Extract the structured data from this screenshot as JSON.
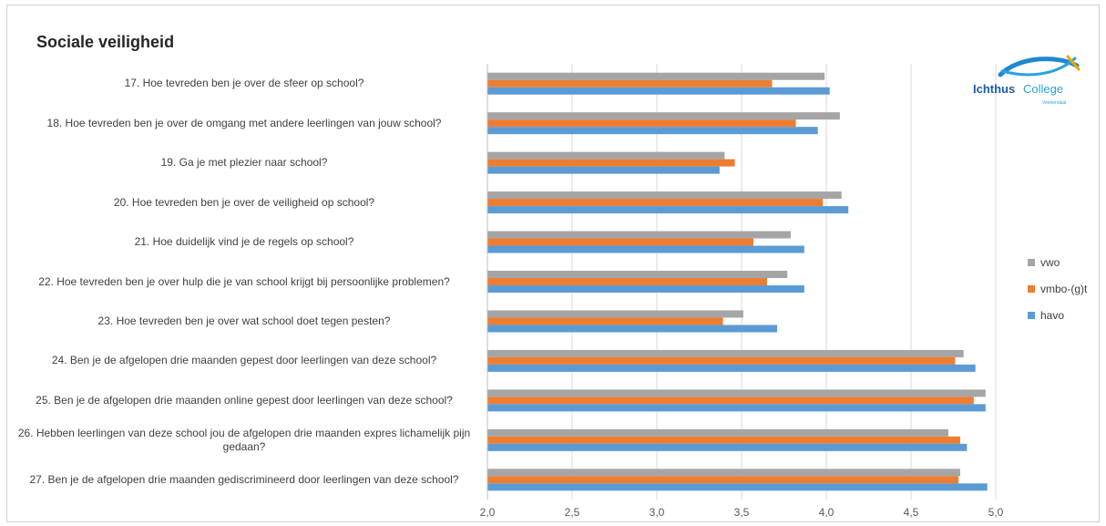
{
  "chart_data": {
    "type": "bar",
    "orientation": "horizontal",
    "title": "Sociale veiligheid",
    "categories": [
      "17. Hoe tevreden ben je over de sfeer op school?",
      "18. Hoe tevreden ben je over de omgang met andere leerlingen van jouw school?",
      "19. Ga je met plezier naar school?",
      "20. Hoe tevreden ben je over de veiligheid op school?",
      "21. Hoe duidelijk vind je de regels op school?",
      "22. Hoe tevreden ben je over hulp die je van school krijgt bij persoonlijke problemen?",
      "23. Hoe tevreden ben je over wat school doet tegen pesten?",
      "24. Ben je de afgelopen drie maanden gepest door leerlingen van deze school?",
      "25. Ben je de afgelopen drie maanden online gepest door leerlingen van deze school?",
      "26. Hebben leerlingen van deze school jou de afgelopen drie maanden expres lichamelijk pijn gedaan?",
      "27. Ben je de afgelopen drie maanden gediscrimineerd door leerlingen van deze school?"
    ],
    "series": [
      {
        "name": "vwo",
        "color": "#a5a5a5",
        "values": [
          3.99,
          4.08,
          3.4,
          4.09,
          3.79,
          3.77,
          3.51,
          4.81,
          4.94,
          4.72,
          4.79
        ]
      },
      {
        "name": "vmbo-(g)t",
        "color": "#ed7d31",
        "values": [
          3.68,
          3.82,
          3.46,
          3.98,
          3.57,
          3.65,
          3.39,
          4.76,
          4.87,
          4.79,
          4.78
        ]
      },
      {
        "name": "havo",
        "color": "#5b9bd5",
        "values": [
          4.02,
          3.95,
          3.37,
          4.13,
          3.87,
          3.87,
          3.71,
          4.88,
          4.94,
          4.83,
          4.95
        ]
      }
    ],
    "xlim": [
      2.0,
      5.0
    ],
    "xticks": [
      "2,0",
      "2,5",
      "3,0",
      "3,5",
      "4,0",
      "4,5",
      "5,0"
    ],
    "grid": true,
    "legend_position": "right"
  },
  "logo": {
    "text_1": "Ichthus",
    "text_2": "College",
    "subtext": "Veenendaal"
  }
}
